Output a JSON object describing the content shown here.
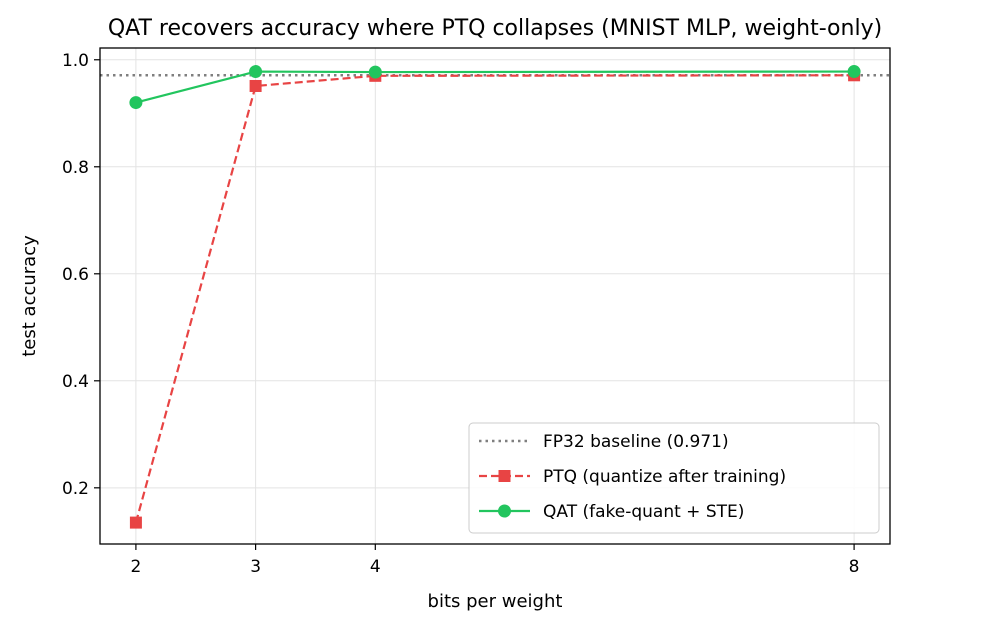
{
  "chart_data": {
    "type": "line",
    "title": "QAT recovers accuracy where PTQ collapses (MNIST MLP, weight-only)",
    "xlabel": "bits per weight",
    "ylabel": "test accuracy",
    "x": [
      2,
      3,
      4,
      8
    ],
    "xticks": [
      2,
      3,
      4,
      8
    ],
    "xtick_labels": [
      "2",
      "3",
      "4",
      "8"
    ],
    "yticks": [
      0.2,
      0.4,
      0.6,
      0.8,
      1.0
    ],
    "ytick_labels": [
      "0.2",
      "0.4",
      "0.6",
      "0.8",
      "1.0"
    ],
    "xlim": [
      1.7,
      8.3
    ],
    "ylim": [
      0.095,
      1.022
    ],
    "grid": true,
    "legend_position": "lower-right",
    "baseline": {
      "name": "FP32 baseline (0.971)",
      "value": 0.971,
      "color": "#7f7f7f",
      "style": "dotted"
    },
    "series": [
      {
        "name": "PTQ (quantize after training)",
        "values": [
          0.135,
          0.951,
          0.97,
          0.971
        ],
        "color": "#e84444",
        "style": "dashed",
        "marker": "square"
      },
      {
        "name": "QAT (fake-quant + STE)",
        "values": [
          0.92,
          0.978,
          0.977,
          0.978
        ],
        "color": "#22c55e",
        "style": "solid",
        "marker": "circle"
      }
    ]
  }
}
